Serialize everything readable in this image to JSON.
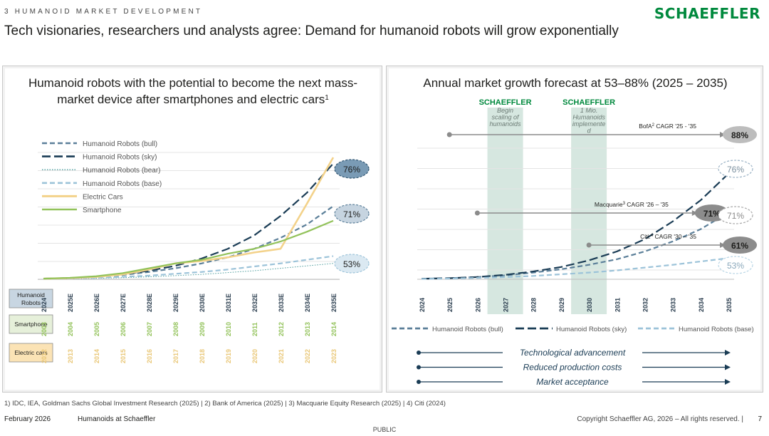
{
  "header": {
    "kicker": "3 HUMANOID MARKET DEVELOPMENT",
    "brand": "SCHAEFFLER",
    "headline": "Tech visionaries, researchers und analysts agree: Demand for humanoid robots will grow exponentially"
  },
  "colors": {
    "brand_green": "#00893d",
    "bull": "#5b7f99",
    "sky": "#1a3c55",
    "bear": "#4a9b9b",
    "base": "#9cc3d9",
    "electric_cars": "#f3d28a",
    "smartphone": "#92c25a",
    "band": "#cfe3da"
  },
  "chart_data": [
    {
      "type": "line",
      "title_line1": "Humanoid robots with the potential to become the next mass-",
      "title_line2": "market device after smartphones and electric cars",
      "title_superscript": "1",
      "x": [
        "2024",
        "2025E",
        "2026E",
        "2027E",
        "2028E",
        "2029E",
        "2030E",
        "2031E",
        "2032E",
        "2033E",
        "2034E",
        "2035E"
      ],
      "row_labels": [
        {
          "label_line1": "Humanoid",
          "label_line2": "Robots",
          "fill": "#c8d6e2",
          "text": "#1d1d1b"
        },
        {
          "label_line1": "Smartphone",
          "label_line2": "",
          "fill": "#e6f0da",
          "text": "#1d1d1b"
        },
        {
          "label_line1": "Electric cars",
          "label_line2": "",
          "fill": "#fbe3b5",
          "text": "#1d1d1b"
        }
      ],
      "smartphone_years": [
        "2003",
        "2004",
        "2005",
        "2006",
        "2007",
        "2008",
        "2009",
        "2010",
        "2011",
        "2012",
        "2013",
        "2014"
      ],
      "electric_car_years": [
        "2012",
        "2013",
        "2014",
        "2015",
        "2016",
        "2017",
        "2018",
        "2019",
        "2020",
        "2021",
        "2022",
        "2023"
      ],
      "ylim": [
        0,
        100
      ],
      "series": [
        {
          "name": "Humanoid Robots (bull)",
          "style": "dash",
          "values": [
            0.5,
            1,
            2,
            3.5,
            6,
            9,
            13,
            18,
            25,
            34,
            45,
            60
          ]
        },
        {
          "name": "Humanoid Robots (sky)",
          "style": "longdash",
          "values": [
            0.5,
            1,
            2,
            4,
            7,
            11,
            17,
            25,
            36,
            52,
            71,
            95
          ]
        },
        {
          "name": "Humanoid Robots (bear)",
          "style": "dot",
          "values": [
            0.2,
            0.4,
            0.8,
            1.3,
            2,
            3,
            4,
            5.5,
            7,
            9,
            11,
            13
          ]
        },
        {
          "name": "Humanoid Robots (base)",
          "style": "dash",
          "values": [
            0.3,
            0.6,
            1.2,
            2,
            3,
            4.5,
            6,
            8,
            10.5,
            13,
            16,
            19
          ]
        },
        {
          "name": "Electric Cars",
          "style": "solid",
          "values": [
            0.5,
            1,
            2,
            4,
            8,
            13,
            15,
            18,
            22,
            25,
            62,
            100
          ]
        },
        {
          "name": "Smartphone",
          "style": "solid",
          "values": [
            0.5,
            1.2,
            2.5,
            5,
            9,
            13,
            16,
            21,
            25,
            31,
            39,
            48
          ]
        }
      ],
      "bubbles": [
        {
          "label": "76%",
          "series": "Humanoid Robots (sky)",
          "fill": "#7a9bb5",
          "stroke": "#2f5470"
        },
        {
          "label": "71%",
          "series": "Humanoid Robots (bull)",
          "fill": "#c6d4e0",
          "stroke": "#5b7f99"
        },
        {
          "label": "53%",
          "series": "Humanoid Robots (base)",
          "fill": "#dbe9f2",
          "stroke": "#9cc3d9"
        }
      ]
    },
    {
      "type": "line",
      "title": "Annual market growth forecast at 53–88% (2025 – 2035)",
      "x": [
        "2024",
        "2025",
        "2026",
        "2027",
        "2028",
        "2029",
        "2030",
        "2031",
        "2032",
        "2033",
        "2034",
        "2035"
      ],
      "ylim": [
        0,
        100
      ],
      "series": [
        {
          "name": "Humanoid Robots (bull)",
          "style": "dash",
          "values": [
            0.5,
            1,
            2,
            3.5,
            6,
            9,
            13,
            18,
            25,
            34,
            45,
            60
          ]
        },
        {
          "name": "Humanoid Robots (sky)",
          "style": "longdash",
          "values": [
            0.5,
            1,
            2,
            4,
            7,
            11,
            17,
            25,
            36,
            52,
            71,
            95
          ]
        },
        {
          "name": "Humanoid Robots (base)",
          "style": "dash",
          "values": [
            0.3,
            0.6,
            1.2,
            2,
            3,
            4.5,
            6,
            8,
            10.5,
            13,
            16,
            19
          ]
        }
      ],
      "legend": [
        "Humanoid Robots (bull)",
        "Humanoid Robots (sky)",
        "Humanoid Robots (base)"
      ],
      "bands": [
        {
          "year": "2027",
          "brand": "SCHAEFFLER",
          "caption_lines": [
            "Begin",
            "scaling of",
            "humanoids"
          ]
        },
        {
          "year": "2030",
          "brand": "SCHAEFFLER",
          "caption_lines": [
            "1 Mio.",
            "Humanoids",
            "implemente",
            "d"
          ]
        }
      ],
      "forecasts": [
        {
          "name": "BofA",
          "sup": "2",
          "text": " CAGR '25 - '35",
          "from": "2025",
          "to": "2035",
          "level": 88,
          "label": "88%",
          "fill": "#bdbdbd",
          "text_color": "#1d1d1b"
        },
        {
          "name": "Macquarie",
          "sup": "3",
          "text": " CAGR '26 – '35",
          "from": "2026",
          "to": "2034",
          "level": 71,
          "label": "71%",
          "fill": "#8c8c8c",
          "text_color": "#1d1d1b"
        },
        {
          "name": "Citi:",
          "sup": "4",
          "text": " CAGR '30 – '35",
          "from": "2030",
          "to": "2035",
          "level": 61,
          "label": "61%",
          "fill": "#8c8c8c",
          "text_color": "#1d1d1b"
        }
      ],
      "end_labels": [
        {
          "label": "76%",
          "series": "Humanoid Robots (sky)",
          "stroke": "#9cb3c6",
          "text": "#7a8f9e"
        },
        {
          "label": "71%",
          "series": "Humanoid Robots (bull)",
          "stroke": "#a9a9a9",
          "text": "#8a8a8a"
        },
        {
          "label": "53%",
          "series": "Humanoid Robots (base)",
          "stroke": "#b9d6e6",
          "text": "#8aa8bb"
        }
      ],
      "drivers": [
        "Technological advancement",
        "Reduced production costs",
        "Market acceptance"
      ]
    }
  ],
  "footer": {
    "footnotes": "1) IDC, IEA, Goldman Sachs Global Investment Research (2025)  | 2) Bank of America (2025)  | 3) Macquarie Equity Research (2025)  | 4) Citi (2024)",
    "date": "February 2026",
    "title": "Humanoids at Schaeffler",
    "copyright": "Copyright Schaeffler AG, 2026 – All rights reserved.  |",
    "page": "7",
    "classification": "PUBLIC"
  }
}
